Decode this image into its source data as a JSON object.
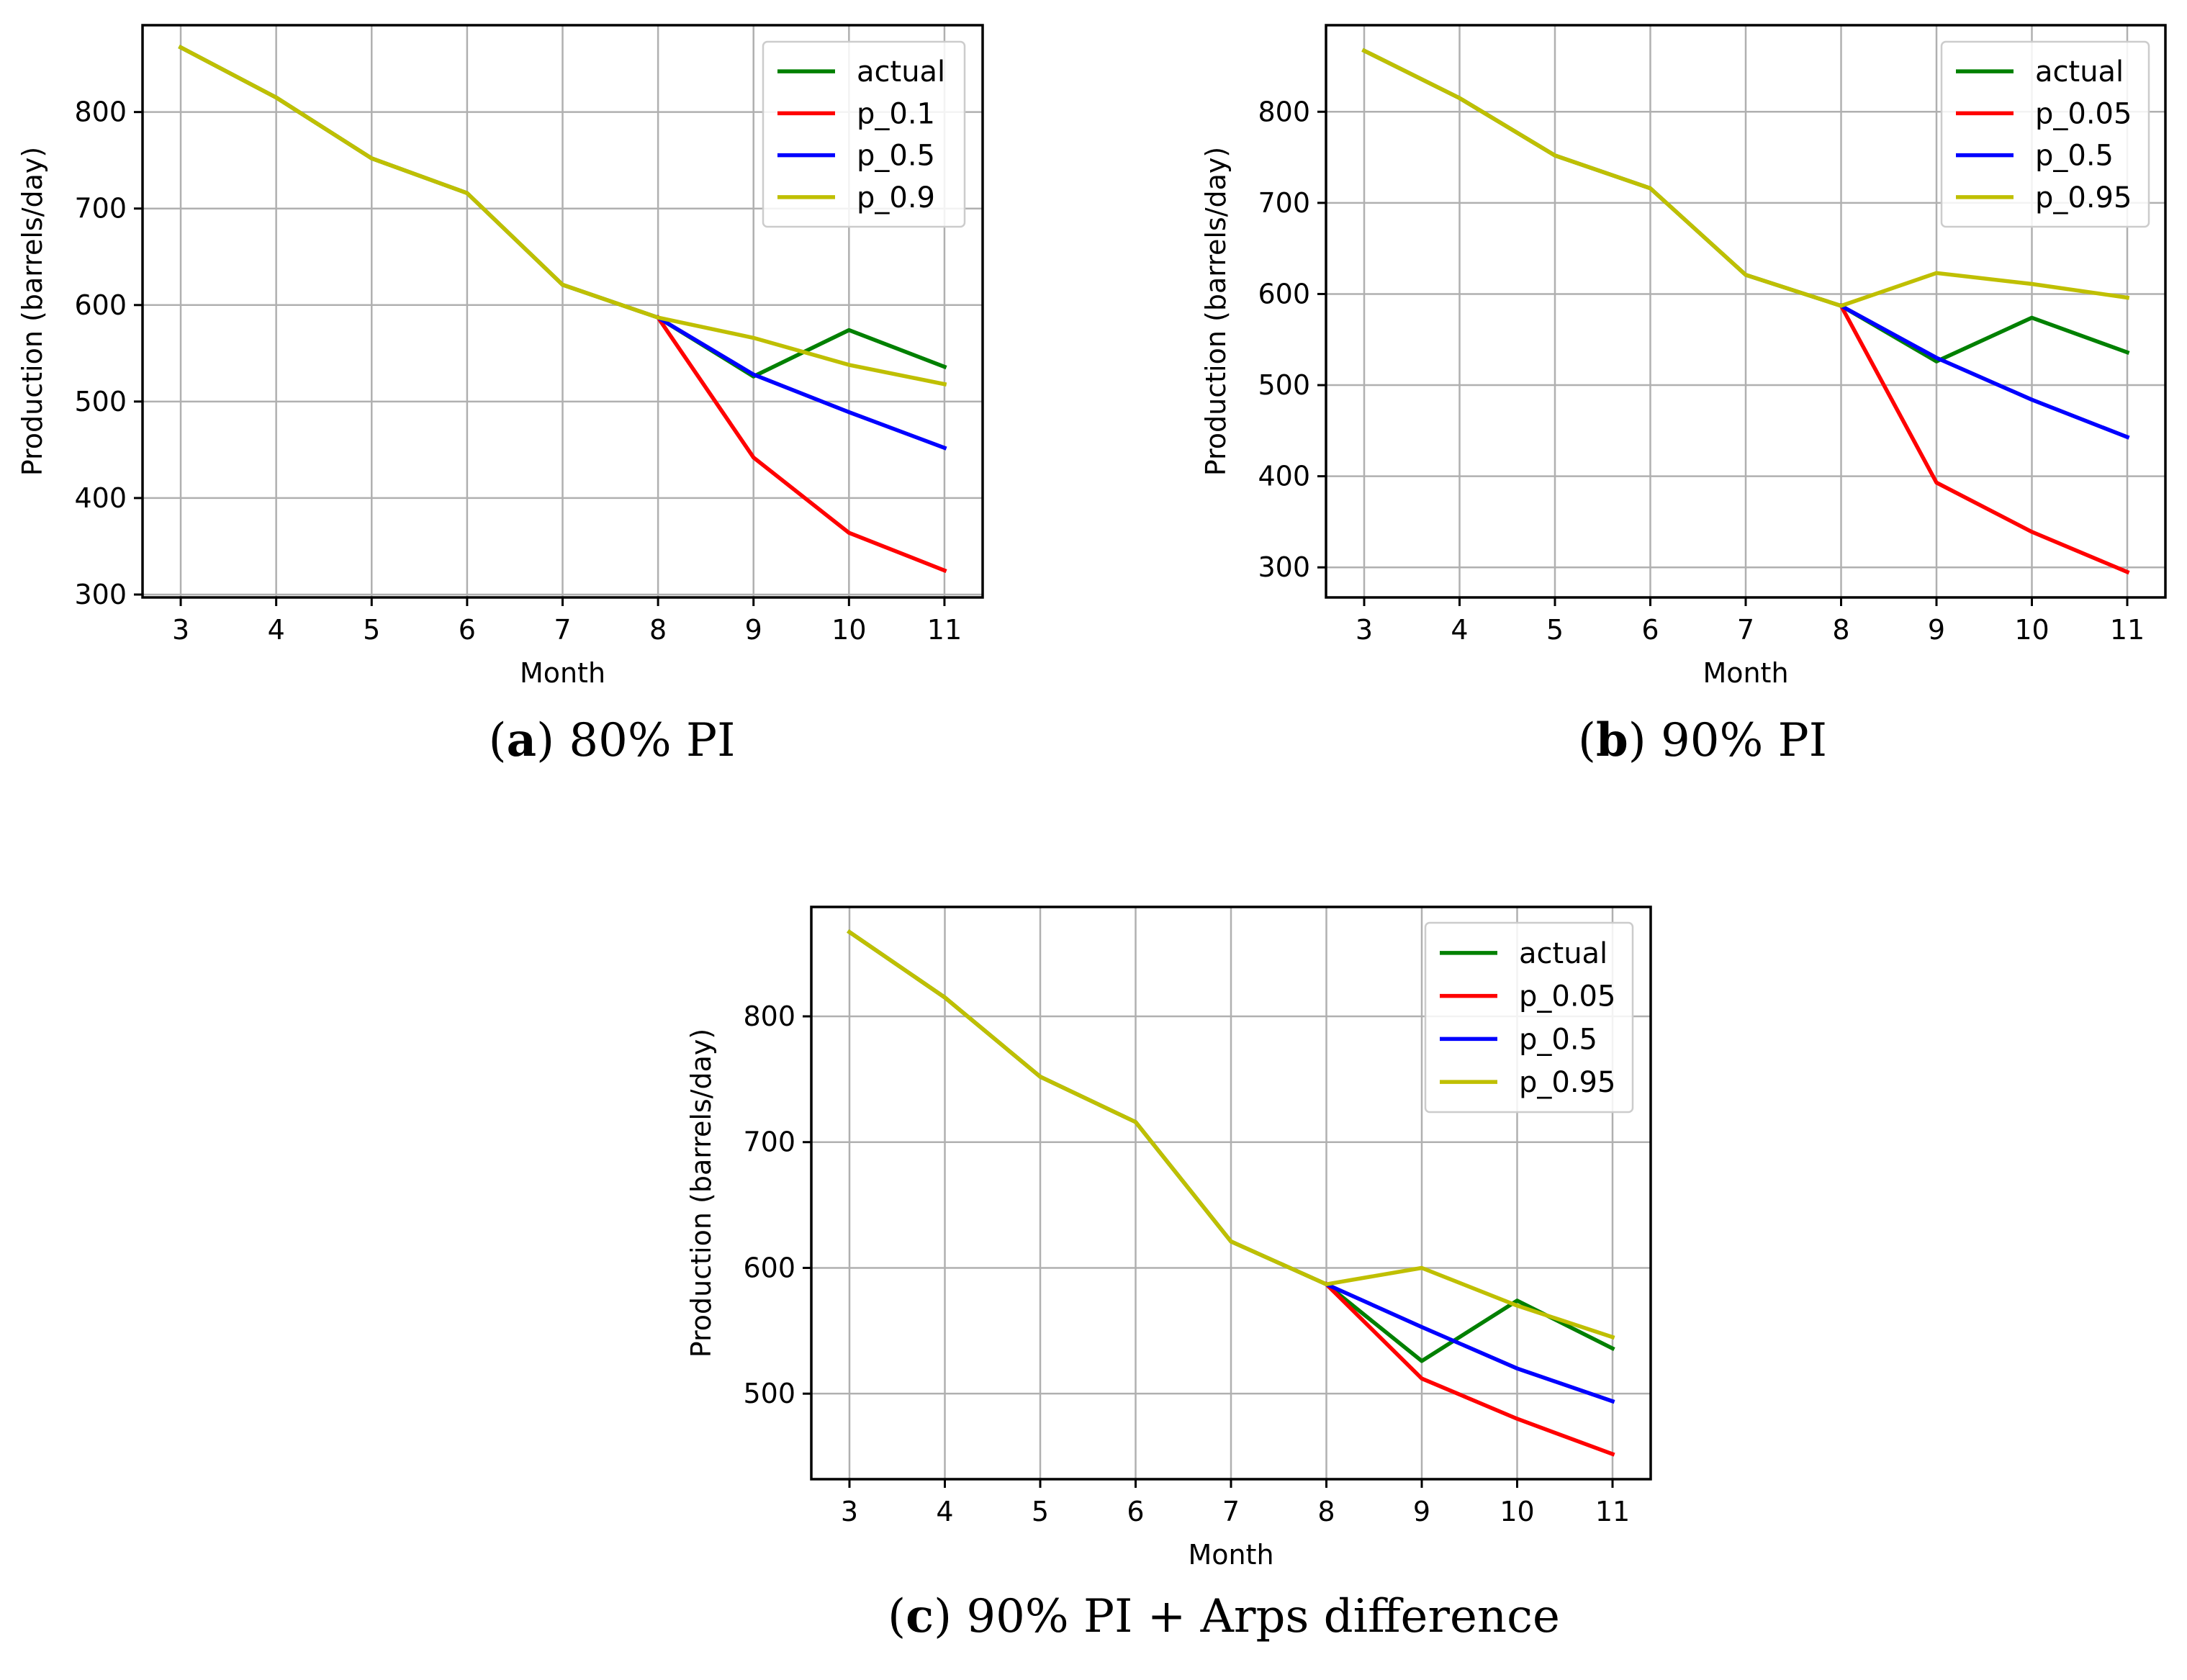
{
  "chart_data": [
    {
      "id": "a",
      "type": "line",
      "caption": {
        "letter": "a",
        "text": "80% PI"
      },
      "xlabel": "Month",
      "ylabel": "Production (barrels/day)",
      "xlim": [
        2.6,
        11.4
      ],
      "ylim": [
        297,
        890
      ],
      "x_ticks": [
        3,
        4,
        5,
        6,
        7,
        8,
        9,
        10,
        11
      ],
      "y_ticks": [
        300,
        400,
        500,
        600,
        700,
        800
      ],
      "grid": true,
      "legend_position": "top-right",
      "series": [
        {
          "name": "actual",
          "color": "#008000",
          "x": [
            3,
            4,
            5,
            6,
            7,
            8,
            9,
            10,
            11
          ],
          "values": [
            867,
            815,
            752,
            716,
            621,
            587,
            526,
            574,
            536
          ]
        },
        {
          "name": "p_0.1",
          "color": "#ff0000",
          "x": [
            8,
            9,
            10,
            11
          ],
          "values": [
            587,
            442,
            364,
            325
          ]
        },
        {
          "name": "p_0.5",
          "color": "#0000ff",
          "x": [
            8,
            9,
            10,
            11
          ],
          "values": [
            587,
            528,
            489,
            452
          ]
        },
        {
          "name": "p_0.9",
          "color": "#bfbf00",
          "x": [
            3,
            4,
            5,
            6,
            7,
            8,
            9,
            10,
            11
          ],
          "values": [
            867,
            815,
            752,
            716,
            621,
            587,
            566,
            538,
            518
          ]
        }
      ]
    },
    {
      "id": "b",
      "type": "line",
      "caption": {
        "letter": "b",
        "text": "90% PI"
      },
      "xlabel": "Month",
      "ylabel": "Production (barrels/day)",
      "xlim": [
        2.6,
        11.4
      ],
      "ylim": [
        267,
        895
      ],
      "x_ticks": [
        3,
        4,
        5,
        6,
        7,
        8,
        9,
        10,
        11
      ],
      "y_ticks": [
        300,
        400,
        500,
        600,
        700,
        800
      ],
      "grid": true,
      "legend_position": "top-right",
      "series": [
        {
          "name": "actual",
          "color": "#008000",
          "x": [
            3,
            4,
            5,
            6,
            7,
            8,
            9,
            10,
            11
          ],
          "values": [
            867,
            815,
            752,
            716,
            621,
            587,
            526,
            574,
            536
          ]
        },
        {
          "name": "p_0.05",
          "color": "#ff0000",
          "x": [
            8,
            9,
            10,
            11
          ],
          "values": [
            587,
            393,
            339,
            295
          ]
        },
        {
          "name": "p_0.5",
          "color": "#0000ff",
          "x": [
            8,
            9,
            10,
            11
          ],
          "values": [
            587,
            530,
            484,
            443
          ]
        },
        {
          "name": "p_0.95",
          "color": "#bfbf00",
          "x": [
            3,
            4,
            5,
            6,
            7,
            8,
            9,
            10,
            11
          ],
          "values": [
            867,
            815,
            752,
            716,
            621,
            587,
            623,
            611,
            596
          ]
        }
      ]
    },
    {
      "id": "c",
      "type": "line",
      "caption": {
        "letter": "c",
        "text": "90% PI + Arps difference"
      },
      "xlabel": "Month",
      "ylabel": "Production (barrels/day)",
      "xlim": [
        2.6,
        11.4
      ],
      "ylim": [
        432,
        887
      ],
      "x_ticks": [
        3,
        4,
        5,
        6,
        7,
        8,
        9,
        10,
        11
      ],
      "y_ticks": [
        500,
        600,
        700,
        800
      ],
      "grid": true,
      "legend_position": "top-right",
      "series": [
        {
          "name": "actual",
          "color": "#008000",
          "x": [
            3,
            4,
            5,
            6,
            7,
            8,
            9,
            10,
            11
          ],
          "values": [
            867,
            815,
            752,
            716,
            621,
            587,
            526,
            574,
            536
          ]
        },
        {
          "name": "p_0.05",
          "color": "#ff0000",
          "x": [
            8,
            9,
            10,
            11
          ],
          "values": [
            587,
            512,
            480,
            452
          ]
        },
        {
          "name": "p_0.5",
          "color": "#0000ff",
          "x": [
            8,
            9,
            10,
            11
          ],
          "values": [
            587,
            553,
            520,
            494
          ]
        },
        {
          "name": "p_0.95",
          "color": "#bfbf00",
          "x": [
            3,
            4,
            5,
            6,
            7,
            8,
            9,
            10,
            11
          ],
          "values": [
            867,
            815,
            752,
            716,
            621,
            587,
            600,
            570,
            545
          ]
        }
      ]
    }
  ]
}
